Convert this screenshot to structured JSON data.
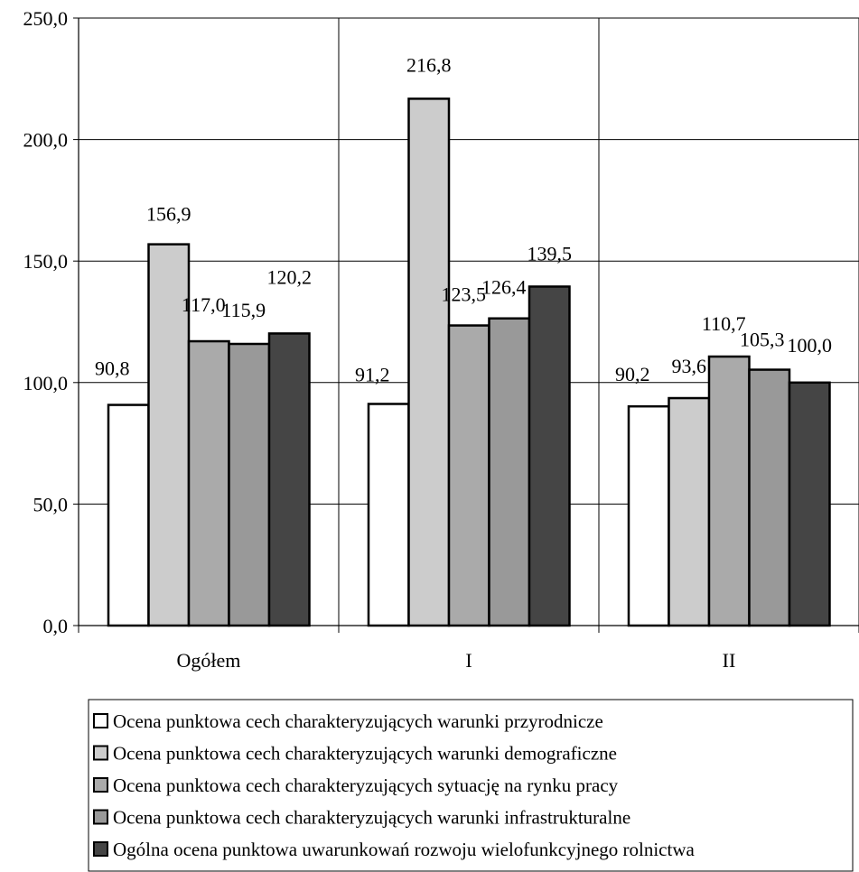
{
  "chart_data": {
    "type": "bar",
    "title": "",
    "xlabel": "",
    "ylabel": "",
    "categories": [
      "Ogółem",
      "I",
      "II"
    ],
    "ylim": [
      0,
      250
    ],
    "y_ticks": [
      "0,0",
      "50,0",
      "100,0",
      "150,0",
      "200,0",
      "250,0"
    ],
    "grid": true,
    "legend_position": "bottom",
    "series": [
      {
        "name": "Ocena punktowa cech charakteryzujących warunki przyrodnicze",
        "color": "#ffffff",
        "values": [
          90.8,
          91.2,
          90.2
        ],
        "labels": [
          "90,8",
          "91,2",
          "90,2"
        ]
      },
      {
        "name": "Ocena punktowa cech charakteryzujących warunki demograficzne",
        "color": "#cccccc",
        "values": [
          156.9,
          216.8,
          93.6
        ],
        "labels": [
          "156,9",
          "216,8",
          "93,6"
        ]
      },
      {
        "name": "Ocena punktowa cech charakteryzujących sytuację na rynku pracy",
        "color": "#aaaaaa",
        "values": [
          117.0,
          123.5,
          110.7
        ],
        "labels": [
          "117,0",
          "123,5",
          "110,7"
        ]
      },
      {
        "name": "Ocena punktowa cech charakteryzujących warunki infrastrukturalne",
        "color": "#999999",
        "values": [
          115.9,
          126.4,
          105.3
        ],
        "labels": [
          "115,9",
          "126,4",
          "105,3"
        ]
      },
      {
        "name": "Ogólna ocena punktowa uwarunkowań rozwoju wielofunkcyjnego rolnictwa",
        "color": "#454545",
        "values": [
          120.2,
          139.5,
          100.0
        ],
        "labels": [
          "120,2",
          "139,5",
          "100,0"
        ]
      }
    ]
  }
}
